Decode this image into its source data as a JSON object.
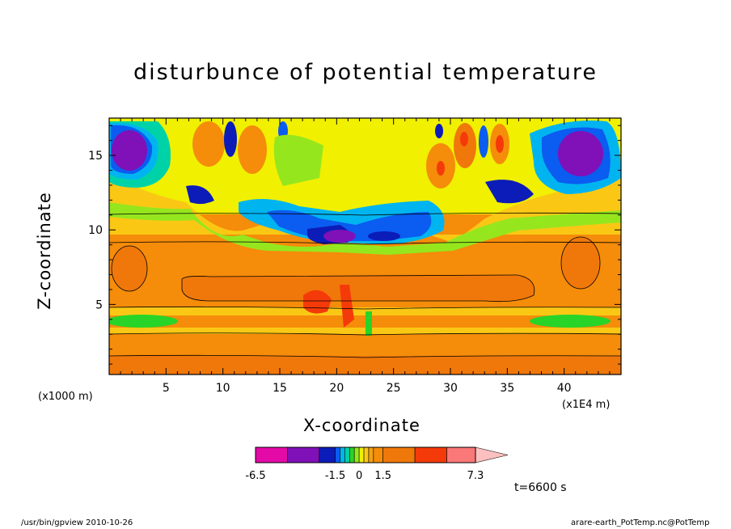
{
  "chart_data": {
    "type": "heatmap",
    "title": "disturbunce of potential temperature",
    "xlabel": "X-coordinate",
    "ylabel": "Z-coordinate",
    "x_unit": "(x1E4 m)",
    "y_unit": "(x1000 m)",
    "xlim": [
      0,
      45
    ],
    "ylim": [
      0.3,
      17.5
    ],
    "x_ticks": [
      5,
      10,
      15,
      20,
      25,
      30,
      35,
      40
    ],
    "y_ticks": [
      5,
      10,
      15
    ],
    "colorbar": {
      "levels": [
        -6.5,
        -5.5,
        -4.5,
        -3.5,
        -2.5,
        -1.5,
        -1.2,
        -0.9,
        -0.6,
        -0.3,
        0,
        0.3,
        0.6,
        0.9,
        1.2,
        1.5,
        2.5,
        3.5,
        4.5,
        5.5,
        6.5,
        7.3
      ],
      "tick_labels": [
        "-6.5",
        "-1.5",
        "0",
        "1.5",
        "7.3"
      ],
      "colors": [
        "#e40aa8",
        "#8010b8",
        "#0c1cb8",
        "#0b5cf0",
        "#00b4f0",
        "#00d2a8",
        "#28d428",
        "#96e61e",
        "#f0f000",
        "#fac814",
        "#f5a014",
        "#f58c0a",
        "#f0780a",
        "#f53a0a",
        "#fa7878"
      ],
      "extend": "max"
    },
    "time_label": "t=6600 s"
  },
  "footer": {
    "left": "/usr/bin/gpview   2010-10-26",
    "right": "arare-earth_PotTemp.nc@PotTemp"
  }
}
